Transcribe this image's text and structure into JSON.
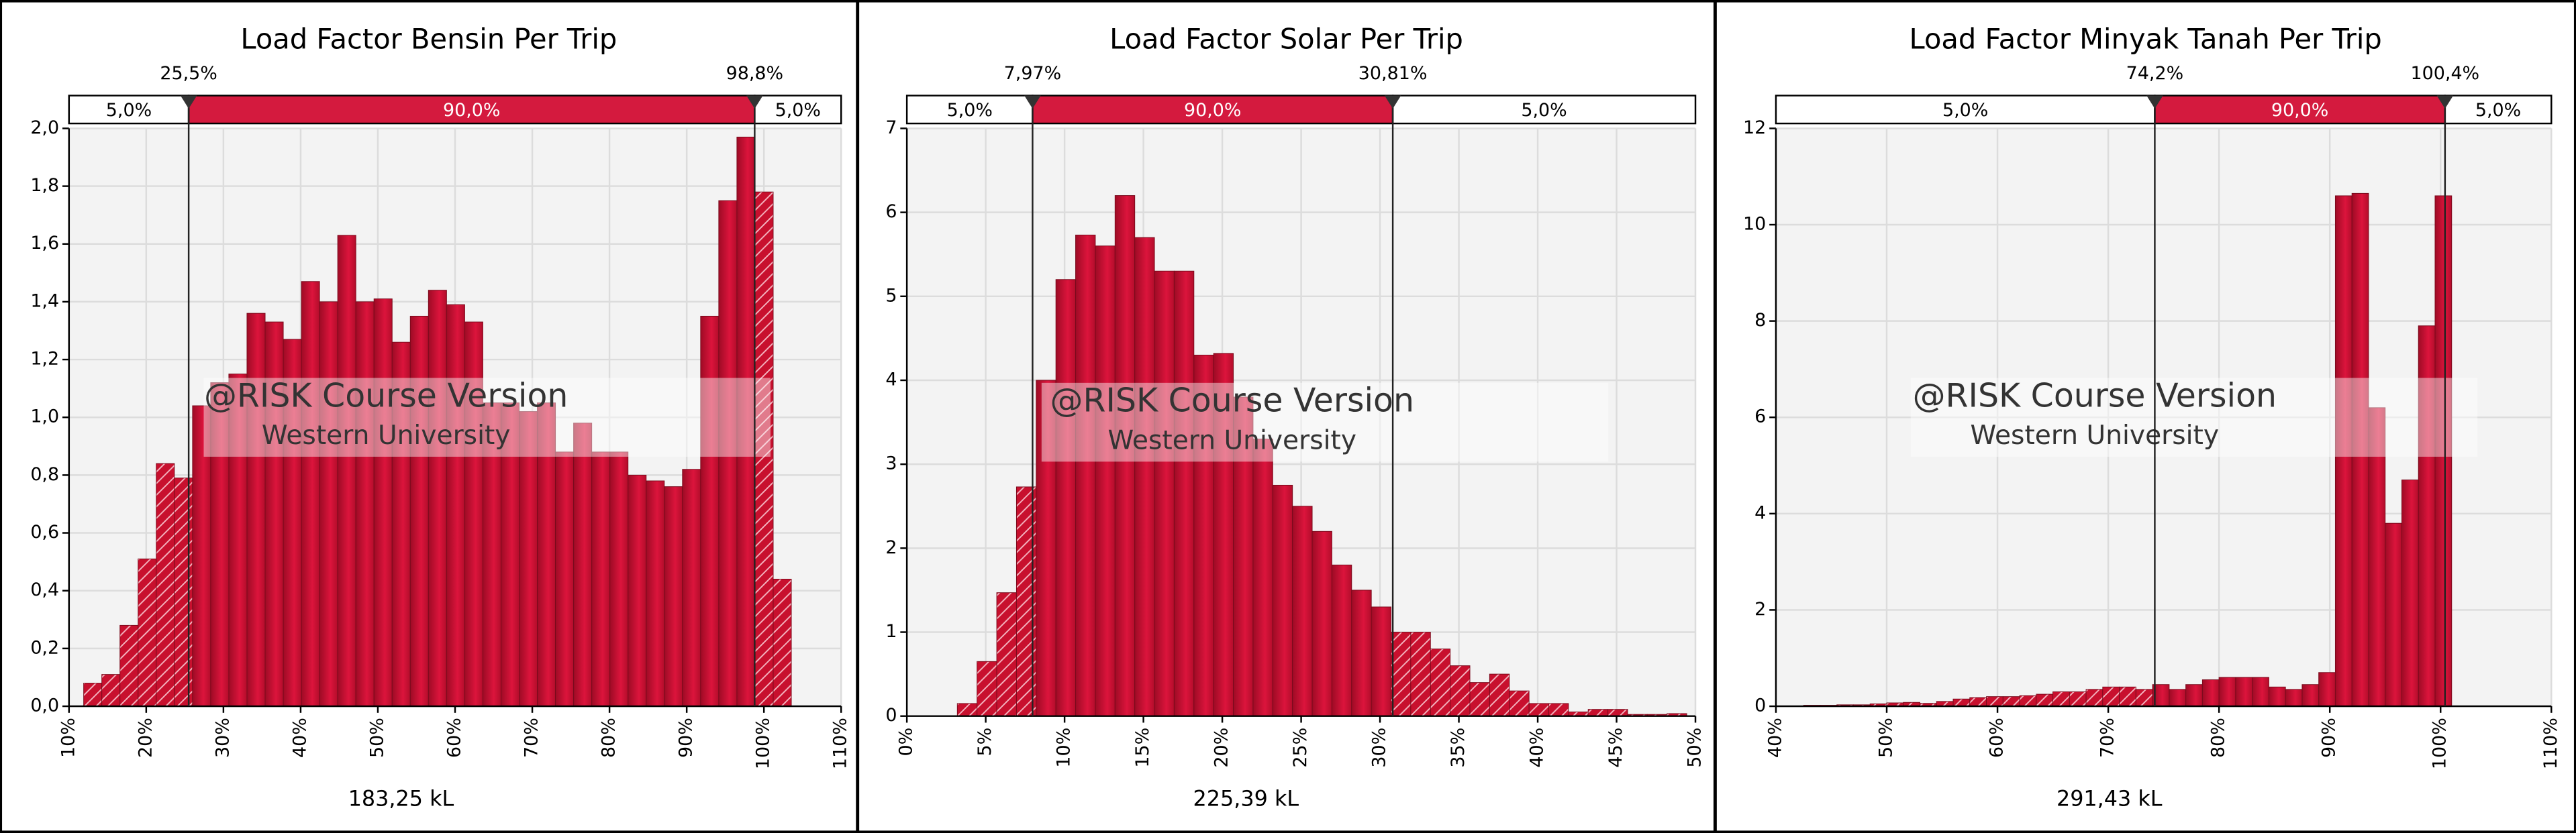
{
  "chart_data": [
    {
      "type": "histogram",
      "title": "Load Factor Bensin Per Trip",
      "x_label": "183,25 kL",
      "watermark": [
        "@RISK Course Version",
        "Western University"
      ],
      "left_tail_label": "5,0%",
      "center_label": "90,0%",
      "right_tail_label": "5,0%",
      "delimiters": [
        {
          "value": 25.5,
          "label": "25,5%"
        },
        {
          "value": 98.8,
          "label": "98,8%"
        }
      ],
      "color": "#c8102e",
      "bins": [
        11.9,
        14.25,
        16.6,
        18.95,
        21.3,
        23.65,
        26.0,
        28.35,
        30.7,
        33.05,
        35.4,
        37.75,
        40.1,
        42.45,
        44.8,
        47.15,
        49.5,
        51.85,
        54.2,
        56.55,
        58.9,
        61.25,
        63.6,
        65.95,
        68.3,
        70.65,
        73.0,
        75.35,
        77.7,
        80.05,
        82.4,
        84.75,
        87.1,
        89.45,
        91.8,
        94.15,
        96.5,
        98.85,
        101.2,
        103.55
      ],
      "values": [
        0.08,
        0.11,
        0.28,
        0.51,
        0.84,
        0.79,
        1.04,
        1.12,
        1.15,
        1.36,
        1.33,
        1.27,
        1.47,
        1.4,
        1.63,
        1.4,
        1.41,
        1.26,
        1.35,
        1.44,
        1.39,
        1.33,
        1.05,
        1.05,
        1.02,
        1.05,
        0.88,
        0.98,
        0.88,
        0.88,
        0.8,
        0.78,
        0.76,
        0.82,
        1.35,
        1.75,
        1.97,
        1.78,
        0.44
      ],
      "xlim": [
        10,
        110
      ],
      "xticks": [
        {
          "value": 10,
          "label": "10%"
        },
        {
          "value": 20,
          "label": "20%"
        },
        {
          "value": 30,
          "label": "30%"
        },
        {
          "value": 40,
          "label": "40%"
        },
        {
          "value": 50,
          "label": "50%"
        },
        {
          "value": 60,
          "label": "60%"
        },
        {
          "value": 70,
          "label": "70%"
        },
        {
          "value": 80,
          "label": "80%"
        },
        {
          "value": 90,
          "label": "90%"
        },
        {
          "value": 100,
          "label": "100%"
        },
        {
          "value": 110,
          "label": "110%"
        }
      ],
      "ylim": [
        0,
        2
      ],
      "yticks": [
        {
          "value": 0,
          "label": "0,0"
        },
        {
          "value": 0.2,
          "label": "0,2"
        },
        {
          "value": 0.4,
          "label": "0,4"
        },
        {
          "value": 0.6,
          "label": "0,6"
        },
        {
          "value": 0.8,
          "label": "0,8"
        },
        {
          "value": 1.0,
          "label": "1,0"
        },
        {
          "value": 1.2,
          "label": "1,2"
        },
        {
          "value": 1.4,
          "label": "1,4"
        },
        {
          "value": 1.6,
          "label": "1,6"
        },
        {
          "value": 1.8,
          "label": "1,8"
        },
        {
          "value": 2.0,
          "label": "2,0"
        }
      ],
      "grid": true
    },
    {
      "type": "histogram",
      "title": "Load Factor Solar Per Trip",
      "x_label": "225,39 kL",
      "watermark": [
        "@RISK Course Version",
        "Western University"
      ],
      "left_tail_label": "5,0%",
      "center_label": "90,0%",
      "right_tail_label": "5,0%",
      "delimiters": [
        {
          "value": 7.97,
          "label": "7,97%"
        },
        {
          "value": 30.81,
          "label": "30,81%"
        }
      ],
      "color": "#c8102e",
      "bins": [
        3.2,
        4.45,
        5.7,
        6.95,
        8.2,
        9.45,
        10.7,
        11.95,
        13.2,
        14.45,
        15.7,
        16.95,
        18.2,
        19.45,
        20.7,
        21.95,
        23.2,
        24.45,
        25.7,
        26.95,
        28.2,
        29.45,
        30.7,
        31.95,
        33.2,
        34.45,
        35.7,
        36.95,
        38.2,
        39.45,
        40.7,
        41.95,
        43.2,
        44.45,
        45.7,
        46.95,
        48.2,
        49.45
      ],
      "values": [
        0.15,
        0.65,
        1.47,
        2.73,
        4.0,
        5.2,
        5.73,
        5.6,
        6.2,
        5.7,
        5.3,
        5.3,
        4.3,
        4.32,
        3.8,
        3.3,
        2.75,
        2.5,
        2.2,
        1.8,
        1.5,
        1.3,
        1.0,
        1.0,
        0.8,
        0.6,
        0.4,
        0.5,
        0.3,
        0.15,
        0.15,
        0.05,
        0.08,
        0.08,
        0.02,
        0.02,
        0.03
      ],
      "xlim": [
        0,
        50
      ],
      "xticks": [
        {
          "value": 0,
          "label": "0%"
        },
        {
          "value": 5,
          "label": "5%"
        },
        {
          "value": 10,
          "label": "10%"
        },
        {
          "value": 15,
          "label": "15%"
        },
        {
          "value": 20,
          "label": "20%"
        },
        {
          "value": 25,
          "label": "25%"
        },
        {
          "value": 30,
          "label": "30%"
        },
        {
          "value": 35,
          "label": "35%"
        },
        {
          "value": 40,
          "label": "40%"
        },
        {
          "value": 45,
          "label": "45%"
        },
        {
          "value": 50,
          "label": "50%"
        }
      ],
      "ylim": [
        0,
        7
      ],
      "yticks": [
        0,
        1,
        2,
        3,
        4,
        5,
        6,
        7
      ],
      "grid": true
    },
    {
      "type": "histogram",
      "title": "Load Factor Minyak Tanah Per Trip",
      "x_label": "291,43 kL",
      "watermark": [
        "@RISK Course Version",
        "Western University"
      ],
      "left_tail_label": "5,0%",
      "center_label": "90,0%",
      "right_tail_label": "5,0%",
      "delimiters": [
        {
          "value": 74.2,
          "label": "74,2%"
        },
        {
          "value": 100.4,
          "label": "100,4%"
        }
      ],
      "color": "#c8102e",
      "bins": [
        42.5,
        44.0,
        45.5,
        47.0,
        48.5,
        50.0,
        51.5,
        53.0,
        54.5,
        56.0,
        57.5,
        59.0,
        60.5,
        62.0,
        63.5,
        65.0,
        66.5,
        68.0,
        69.5,
        71.0,
        72.5,
        74.0,
        75.5,
        77.0,
        78.5,
        80.0,
        81.5,
        83.0,
        84.5,
        86.0,
        87.5,
        89.0,
        90.5,
        92.0,
        93.5,
        95.0,
        96.5,
        98.0,
        99.5,
        101.0
      ],
      "values": [
        0.02,
        0.02,
        0.03,
        0.03,
        0.05,
        0.07,
        0.08,
        0.06,
        0.1,
        0.15,
        0.18,
        0.2,
        0.2,
        0.22,
        0.25,
        0.3,
        0.3,
        0.35,
        0.4,
        0.4,
        0.35,
        0.45,
        0.35,
        0.45,
        0.55,
        0.6,
        0.6,
        0.6,
        0.4,
        0.35,
        0.45,
        0.7,
        10.6,
        10.65,
        6.2,
        3.8,
        4.7,
        7.9,
        10.6
      ],
      "xlim": [
        40,
        110
      ],
      "xticks": [
        {
          "value": 40,
          "label": "40%"
        },
        {
          "value": 50,
          "label": "50%"
        },
        {
          "value": 60,
          "label": "60%"
        },
        {
          "value": 70,
          "label": "70%"
        },
        {
          "value": 80,
          "label": "80%"
        },
        {
          "value": 90,
          "label": "90%"
        },
        {
          "value": 100,
          "label": "100%"
        },
        {
          "value": 110,
          "label": "110%"
        }
      ],
      "ylim": [
        0,
        12
      ],
      "yticks": [
        0,
        2,
        4,
        6,
        8,
        10,
        12
      ],
      "grid": true
    }
  ]
}
